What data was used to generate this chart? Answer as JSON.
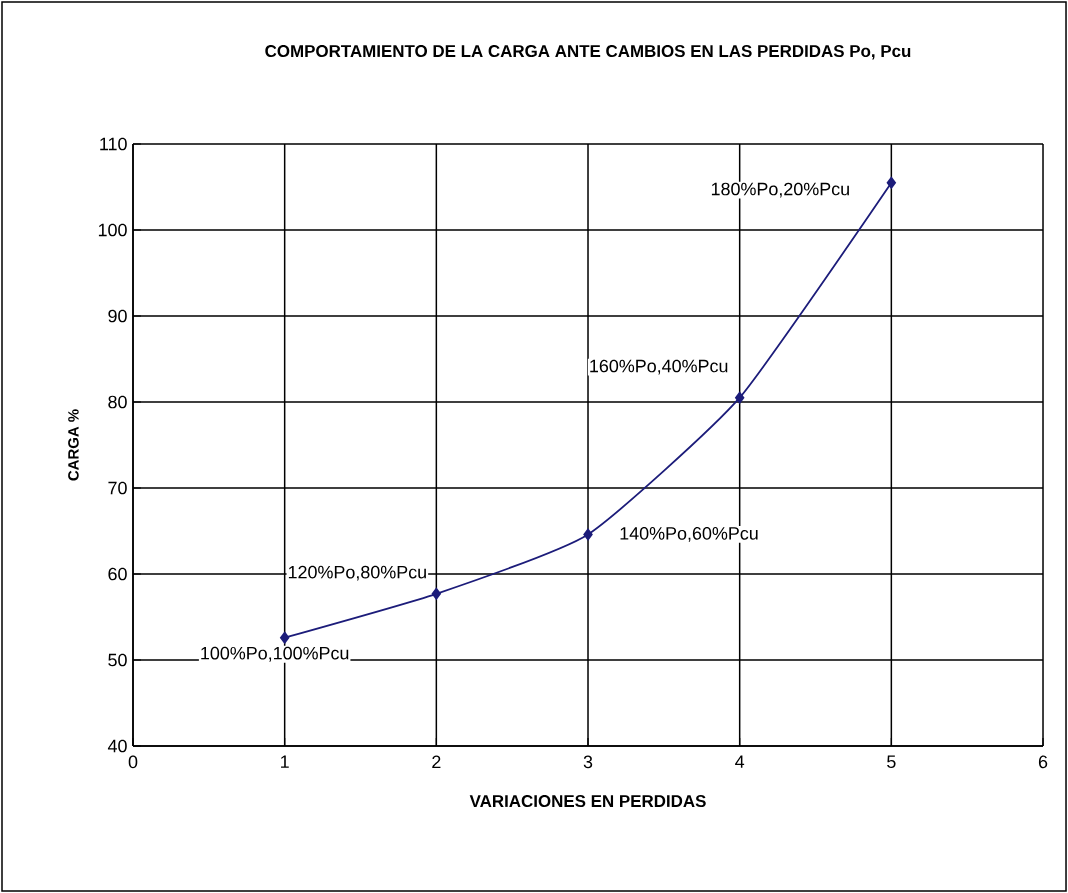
{
  "chart_data": {
    "type": "line",
    "title": "COMPORTAMIENTO DE LA CARGA ANTE CAMBIOS EN LAS PERDIDAS Po, Pcu",
    "xlabel": "VARIACIONES EN PERDIDAS",
    "ylabel": "CARGA %",
    "x": [
      1,
      2,
      3,
      4,
      5
    ],
    "series": [
      {
        "color": "#1c1c7a",
        "values": [
          52.6,
          57.7,
          64.6,
          80.5,
          105.5
        ]
      }
    ],
    "xlim": [
      0,
      6
    ],
    "xticks": [
      0,
      1,
      2,
      3,
      4,
      5,
      6
    ],
    "ylim": [
      40,
      110
    ],
    "yticks": [
      40,
      50,
      60,
      70,
      80,
      90,
      100,
      110
    ],
    "grid": true,
    "marker": "diamond",
    "line_style": "solid",
    "annotations": [
      {
        "text": "100%Po,100%Pcu",
        "x": 1,
        "y": 52.6
      },
      {
        "text": "120%Po,80%Pcu",
        "x": 2,
        "y": 57.7
      },
      {
        "text": "140%Po,60%Pcu",
        "x": 3,
        "y": 64.6
      },
      {
        "text": "160%Po,40%Pcu",
        "x": 4,
        "y": 80.5
      },
      {
        "text": "180%Po,20%Pcu",
        "x": 5,
        "y": 105.5
      }
    ]
  }
}
